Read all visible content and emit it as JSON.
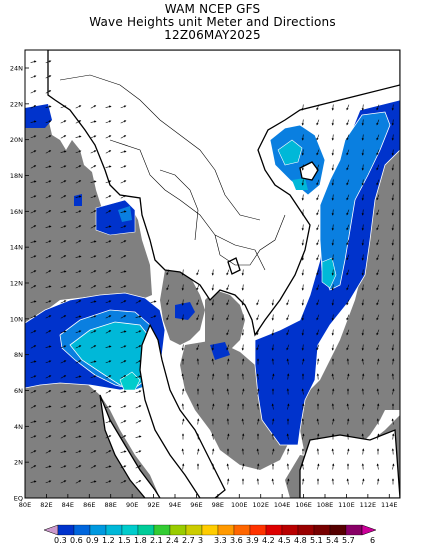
{
  "title": {
    "line1": "WAM NCEP GFS",
    "line2": "Wave Heights unit Meter and Directions",
    "line3": "12Z06MAY2025"
  },
  "axes": {
    "y_ticks": [
      "EQ",
      "2N",
      "4N",
      "6N",
      "8N",
      "10N",
      "12N",
      "14N",
      "16N",
      "18N",
      "20N",
      "22N",
      "24N"
    ],
    "x_ticks": [
      "80E",
      "82E",
      "84E",
      "86E",
      "88E",
      "90E",
      "92E",
      "94E",
      "96E",
      "98E",
      "100E",
      "102E",
      "104E",
      "106E",
      "108E",
      "110E",
      "112E",
      "114E"
    ]
  },
  "colorbar": {
    "labels": [
      "0.3",
      "0.6",
      "0.9",
      "1.2",
      "1.5",
      "1.8",
      "2.1",
      "2.4",
      "2.7",
      "3",
      "3.3",
      "3.6",
      "3.9",
      "4.2",
      "4.5",
      "4.8",
      "5.1",
      "5.4",
      "5.7",
      "6"
    ],
    "colors": [
      "#0033cc",
      "#0066dd",
      "#0099e0",
      "#00b8d8",
      "#00cccc",
      "#00cc99",
      "#33cc33",
      "#99cc00",
      "#cccc00",
      "#ffcc00",
      "#ff9900",
      "#ff6600",
      "#ff3300",
      "#dd0000",
      "#b80000",
      "#990000",
      "#770000",
      "#550000",
      "#880066",
      "#cc0099"
    ]
  },
  "legend_colors": {
    "land": "#ffffff",
    "no_data": "#808080",
    "wave_0_3_to_0_6": "#0033cc",
    "wave_0_6_to_0_9": "#0a7fe0",
    "wave_0_9_to_1_2": "#00b8d8",
    "wave_1_2_to_1_5": "#00cccc"
  }
}
